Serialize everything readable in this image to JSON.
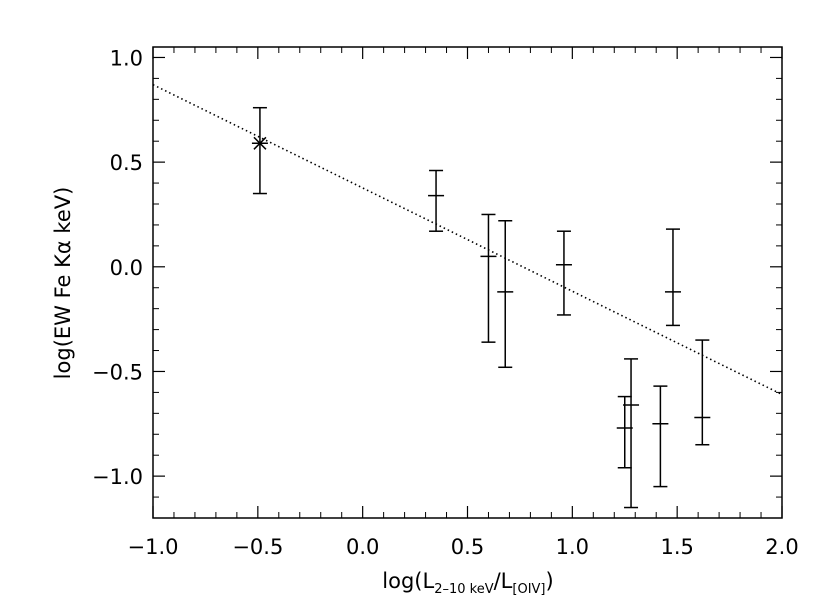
{
  "chart_data": {
    "type": "scatter",
    "xlabel": "log(L2–10 keV/L[OIV])",
    "ylabel": "log(EW Fe Kα keV)",
    "xlabel_parts": {
      "pre": "log(L",
      "sub1": "2–10 keV",
      "mid": "/L",
      "sub2": "[OIV]",
      "post": ")"
    },
    "xlim": [
      -1.0,
      2.0
    ],
    "ylim": [
      -1.2,
      1.05
    ],
    "xticks": [
      -1.0,
      -0.5,
      0.0,
      0.5,
      1.0,
      1.5,
      2.0
    ],
    "xtick_labels": [
      "−1.0",
      "−0.5",
      "0.0",
      "0.5",
      "1.0",
      "1.5",
      "2.0"
    ],
    "yticks": [
      1.0,
      0.5,
      0.0,
      -0.5,
      -1.0
    ],
    "ytick_labels": [
      "1.0",
      "0.5",
      "0.0",
      "−0.5",
      "−1.0"
    ],
    "grid": false,
    "fit_line": {
      "x": [
        -1.0,
        2.0
      ],
      "y": [
        0.87,
        -0.61
      ],
      "style": "dotted"
    },
    "special_point": {
      "x": -0.49,
      "y": 0.59,
      "ylow": 0.35,
      "yhigh": 0.76,
      "marker": "asterisk"
    },
    "points": [
      {
        "x": 0.35,
        "y": 0.34,
        "ylow": 0.17,
        "yhigh": 0.46
      },
      {
        "x": 0.6,
        "y": 0.05,
        "ylow": -0.36,
        "yhigh": 0.25
      },
      {
        "x": 0.68,
        "y": -0.12,
        "ylow": -0.48,
        "yhigh": 0.22
      },
      {
        "x": 0.96,
        "y": 0.01,
        "ylow": -0.23,
        "yhigh": 0.17
      },
      {
        "x": 1.25,
        "y": -0.77,
        "ylow": -0.96,
        "yhigh": -0.62
      },
      {
        "x": 1.28,
        "y": -0.66,
        "ylow": -1.15,
        "yhigh": -0.44
      },
      {
        "x": 1.42,
        "y": -0.75,
        "ylow": -1.05,
        "yhigh": -0.57
      },
      {
        "x": 1.48,
        "y": -0.12,
        "ylow": -0.28,
        "yhigh": 0.18
      },
      {
        "x": 1.62,
        "y": -0.72,
        "ylow": -0.85,
        "yhigh": -0.35
      }
    ]
  }
}
